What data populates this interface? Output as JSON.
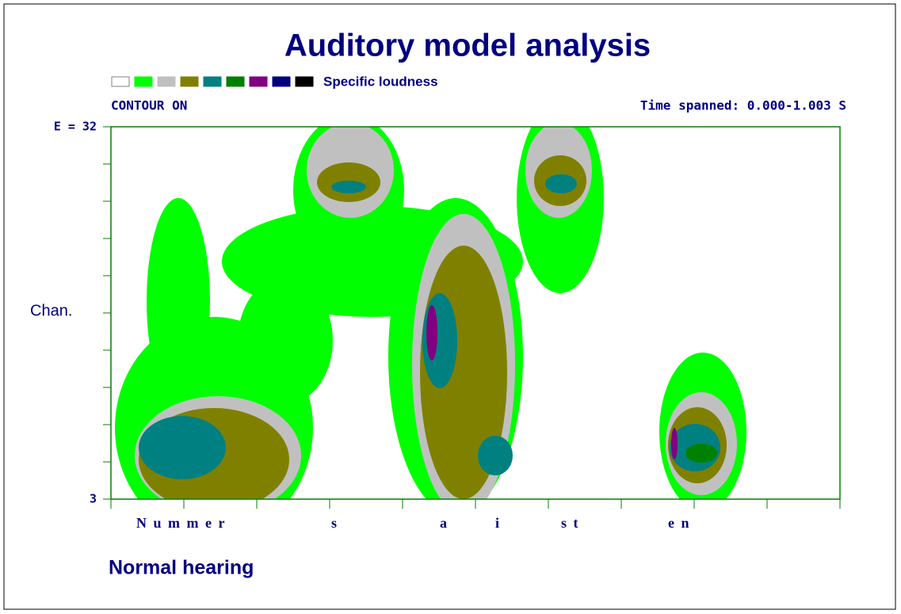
{
  "chart_data": {
    "type": "heatmap",
    "title": "Auditory model analysis",
    "subtitle": "CONTOUR ON",
    "annotation": "Time spanned: 0.000-1.003 S",
    "legend": {
      "label": "Specific loudness",
      "colors": [
        "#ffffff",
        "#00ff00",
        "#c0c0c0",
        "#808000",
        "#008080",
        "#008000",
        "#800080",
        "#000080",
        "#000000"
      ]
    },
    "y_label": "Chan.",
    "ylim": [
      3,
      32
    ],
    "yticks": [
      {
        "value": 32,
        "label": "E = 32"
      },
      3
    ],
    "categories": [
      "N u m m e r",
      "s",
      "a",
      "i",
      "s t",
      "e n"
    ],
    "footer": "Normal hearing"
  }
}
